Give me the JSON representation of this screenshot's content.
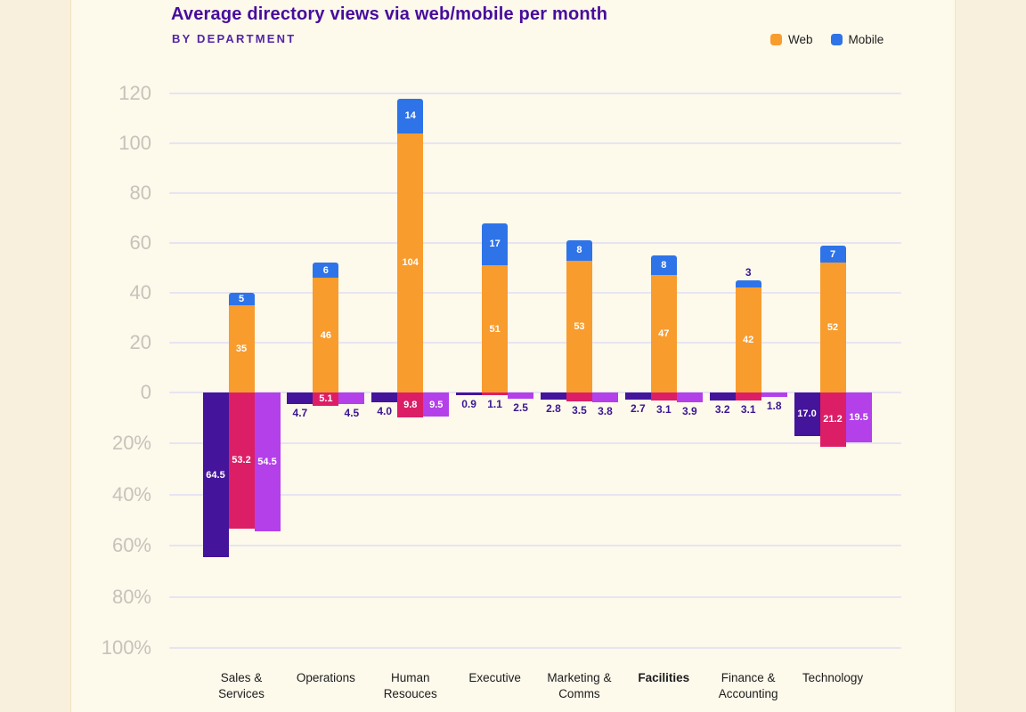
{
  "page": {
    "background": "#F8F0DD",
    "card_background": "#FDF9EB",
    "card_border": "#F0E4BF"
  },
  "header": {
    "title": "Average directory views via web/mobile per month",
    "subtitle": "BY DEPARTMENT",
    "title_color": "#470C9C",
    "subtitle_color": "#5227A5"
  },
  "legend": [
    {
      "label": "Web",
      "color": "#F89C2E"
    },
    {
      "label": "Mobile",
      "color": "#2E74E8"
    }
  ],
  "chart_data": {
    "type": "bar",
    "title": "Average directory views via web/mobile per month",
    "subtitle": "BY DEPARTMENT",
    "legend_position": "top-right",
    "grid": true,
    "categories": [
      {
        "lines": [
          "Sales &",
          "Services"
        ],
        "bold": false
      },
      {
        "lines": [
          "Operations"
        ],
        "bold": false
      },
      {
        "lines": [
          "Human",
          "Resouces"
        ],
        "bold": false
      },
      {
        "lines": [
          "Executive"
        ],
        "bold": false
      },
      {
        "lines": [
          "Marketing &",
          "Comms"
        ],
        "bold": false
      },
      {
        "lines": [
          "Facilities"
        ],
        "bold": true
      },
      {
        "lines": [
          "Finance &",
          "Accounting"
        ],
        "bold": false
      },
      {
        "lines": [
          "Technology"
        ],
        "bold": false
      }
    ],
    "upper": {
      "stacked": true,
      "ylim": [
        0,
        120
      ],
      "tick_labels": [
        "120",
        "100",
        "80",
        "60",
        "40",
        "20",
        "0"
      ],
      "tick_values": [
        120,
        100,
        80,
        60,
        40,
        20,
        0
      ],
      "series": [
        {
          "name": "Web",
          "color": "#F89C2E",
          "values": [
            35,
            46,
            104,
            51,
            53,
            47,
            42,
            52
          ],
          "labels": [
            "35",
            "46",
            "104",
            "51",
            "53",
            "47",
            "42",
            "52"
          ]
        },
        {
          "name": "Mobile",
          "color": "#2E74E8",
          "values": [
            5,
            6,
            14,
            17,
            8,
            8,
            3,
            7
          ],
          "labels": [
            "5",
            "6",
            "14",
            "17",
            "8",
            "8",
            "3",
            "7"
          ]
        }
      ]
    },
    "lower": {
      "ylim": [
        0,
        100
      ],
      "unit": "%",
      "tick_labels": [
        "20%",
        "40%",
        "60%",
        "80%",
        "100%"
      ],
      "tick_values": [
        20,
        40,
        60,
        80,
        100
      ],
      "series": [
        {
          "name": "purple",
          "color": "#44149B",
          "values": [
            64.5,
            4.7,
            4.0,
            0.9,
            2.8,
            2.7,
            3.2,
            17.0
          ],
          "labels": [
            "64.5",
            "4.7",
            "4.0",
            "0.9",
            "2.8",
            "2.7",
            "3.2",
            "17.0"
          ]
        },
        {
          "name": "pink",
          "color": "#DC1E66",
          "values": [
            53.2,
            5.1,
            9.8,
            1.1,
            3.5,
            3.1,
            3.1,
            21.2
          ],
          "labels": [
            "53.2",
            "5.1",
            "9.8",
            "1.1",
            "3.5",
            "3.1",
            "3.1",
            "21.2"
          ]
        },
        {
          "name": "violet",
          "color": "#B440EA",
          "values": [
            54.5,
            4.5,
            9.5,
            2.5,
            3.8,
            3.9,
            1.8,
            19.5
          ],
          "labels": [
            "54.5",
            "4.5",
            "9.5",
            "2.5",
            "3.8",
            "3.9",
            "1.8",
            "19.5"
          ]
        }
      ]
    },
    "axis_colors": {
      "tick_label": "#C7C3BA",
      "gridline": "#E7E4F2",
      "outside_value_label": "#3A1693",
      "inside_value_label": "#FFFFFF"
    }
  }
}
